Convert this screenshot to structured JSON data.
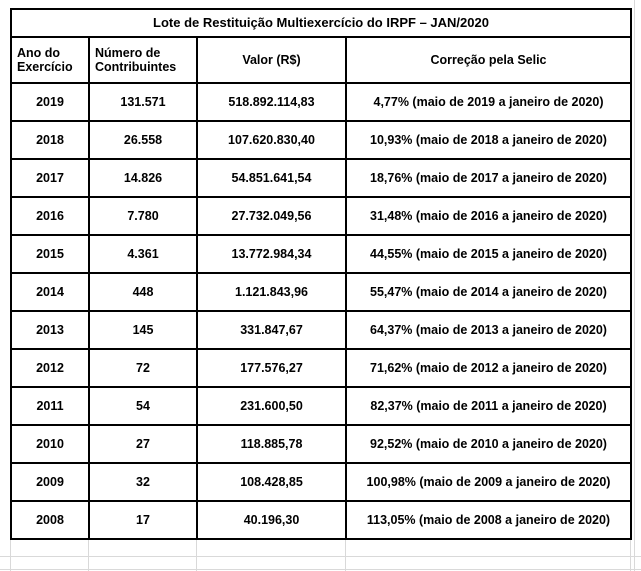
{
  "chart_data": {
    "type": "table",
    "title": "Lote de Restituição Multiexercício do IRPF – JAN/2020",
    "columns": [
      "Ano do Exercício",
      "Número de Contribuintes",
      "Valor (R$)",
      "Correção pela Selic"
    ],
    "rows": [
      [
        "2019",
        "131.571",
        "518.892.114,83",
        "4,77% (maio de 2019 a janeiro de 2020)"
      ],
      [
        "2018",
        "26.558",
        "107.620.830,40",
        "10,93% (maio de 2018 a janeiro de 2020)"
      ],
      [
        "2017",
        "14.826",
        "54.851.641,54",
        "18,76% (maio de 2017 a janeiro de 2020)"
      ],
      [
        "2016",
        "7.780",
        "27.732.049,56",
        "31,48% (maio de 2016 a janeiro de 2020)"
      ],
      [
        "2015",
        "4.361",
        "13.772.984,34",
        "44,55% (maio de 2015 a janeiro de 2020)"
      ],
      [
        "2014",
        "448",
        "1.121.843,96",
        "55,47% (maio de 2014 a janeiro de 2020)"
      ],
      [
        "2013",
        "145",
        "331.847,67",
        "64,37% (maio de 2013 a janeiro de 2020)"
      ],
      [
        "2012",
        "72",
        "177.576,27",
        "71,62% (maio de 2012 a janeiro de 2020)"
      ],
      [
        "2011",
        "54",
        "231.600,50",
        "82,37% (maio de 2011 a janeiro de 2020)"
      ],
      [
        "2010",
        "27",
        "118.885,78",
        "92,52% (maio de 2010 a janeiro de 2020)"
      ],
      [
        "2009",
        "32",
        "108.428,85",
        "100,98% (maio de 2009 a janeiro de 2020)"
      ],
      [
        "2008",
        "17",
        "40.196,30",
        "113,05% (maio de 2008 a janeiro de 2020)"
      ]
    ],
    "layout": {
      "grid": "all black cell borders, bold text, white background",
      "legend_position": "none"
    },
    "colors": {
      "border": "#000000",
      "background": "#ffffff",
      "faint_gridline": "#d9d9d9"
    }
  }
}
